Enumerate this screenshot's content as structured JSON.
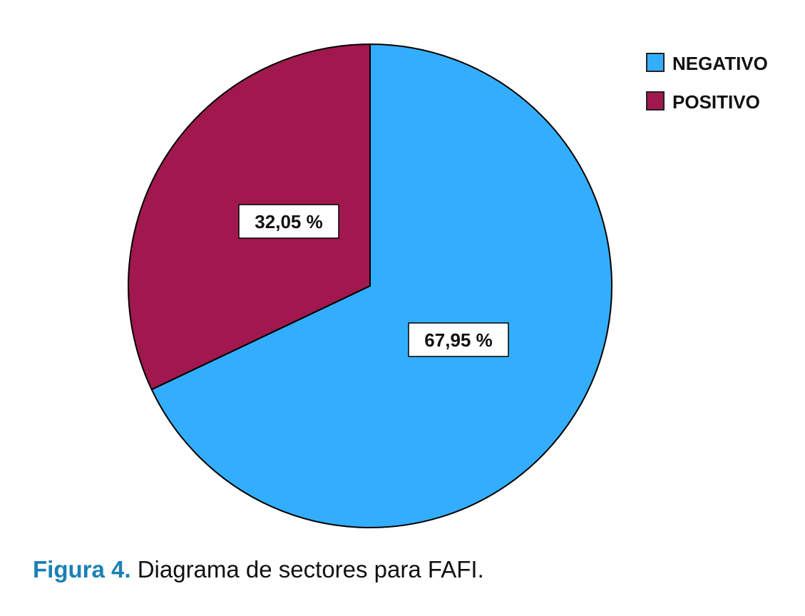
{
  "chart_data": {
    "type": "pie",
    "categories": [
      "NEGATIVO",
      "POSITIVO"
    ],
    "values": [
      67.95,
      32.05
    ],
    "data_labels": [
      "67,95 %",
      "32,05 %"
    ],
    "colors": [
      "#33aeff",
      "#a0184e"
    ],
    "legend": {
      "placement": "top-right",
      "entries": [
        "NEGATIVO",
        "POSITIVO"
      ]
    },
    "start_angle": "12 o'clock",
    "direction": "clockwise"
  },
  "caption": {
    "label": "Figura 4.",
    "text": "Diagrama de sectores para FAFI."
  }
}
